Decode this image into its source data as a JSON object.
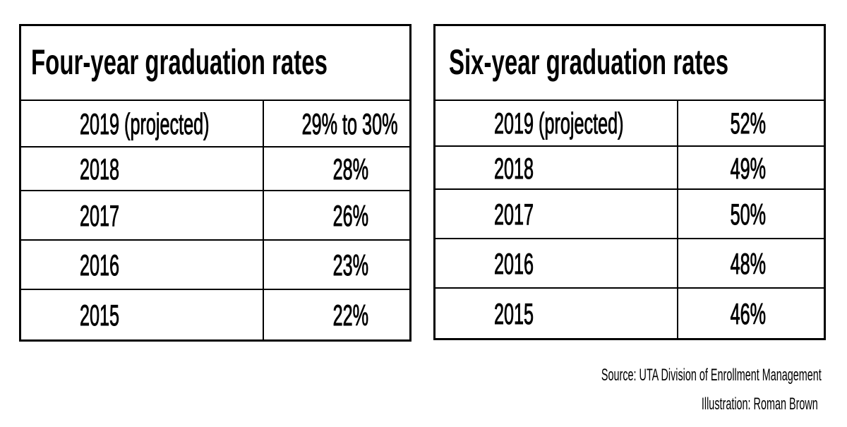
{
  "chart_data": [
    {
      "type": "table",
      "title": "Four-year graduation rates",
      "rows": [
        {
          "year": "2019 (projected)",
          "rate": "29% to 30%"
        },
        {
          "year": "2018",
          "rate": "28%"
        },
        {
          "year": "2017",
          "rate": "26%"
        },
        {
          "year": "2016",
          "rate": "23%"
        },
        {
          "year": "2015",
          "rate": "22%"
        }
      ]
    },
    {
      "type": "table",
      "title": "Six-year graduation rates",
      "rows": [
        {
          "year": "2019 (projected)",
          "rate": "52%"
        },
        {
          "year": "2018",
          "rate": "49%"
        },
        {
          "year": "2017",
          "rate": "50%"
        },
        {
          "year": "2016",
          "rate": "48%"
        },
        {
          "year": "2015",
          "rate": "46%"
        }
      ]
    }
  ],
  "footer": {
    "source": "Source: UTA Division of Enrollment Management",
    "credit": "Illustration: Roman Brown"
  }
}
